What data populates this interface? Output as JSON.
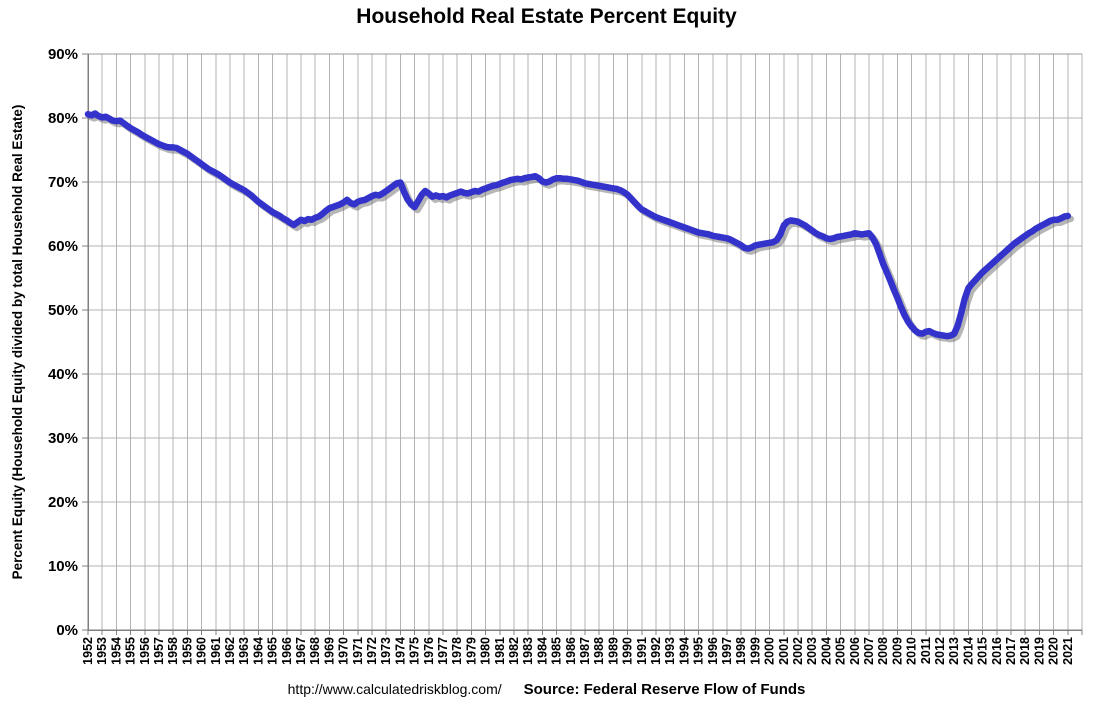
{
  "page": {
    "background": "#ffffff"
  },
  "footer": {
    "url": "http://www.calculatedriskblog.com/",
    "source": "Source: Federal Reserve Flow of Funds"
  },
  "chart_data": {
    "type": "line",
    "title": "Household Real Estate Percent Equity",
    "ylabel": "Percent Equity (Household Equity divided by total Household Real Estate)",
    "xlabel": "",
    "ylim": [
      0,
      90
    ],
    "y_tick_step": 10,
    "y_tick_labels": [
      "0%",
      "10%",
      "20%",
      "30%",
      "40%",
      "50%",
      "60%",
      "70%",
      "80%",
      "90%"
    ],
    "x_start": 1952,
    "x_end": 2021,
    "x_tick_labels": [
      "1952",
      "1953",
      "1954",
      "1955",
      "1956",
      "1957",
      "1958",
      "1959",
      "1960",
      "1961",
      "1962",
      "1963",
      "1964",
      "1965",
      "1966",
      "1967",
      "1968",
      "1969",
      "1970",
      "1971",
      "1972",
      "1973",
      "1974",
      "1975",
      "1976",
      "1977",
      "1978",
      "1979",
      "1980",
      "1981",
      "1982",
      "1983",
      "1984",
      "1985",
      "1986",
      "1987",
      "1988",
      "1989",
      "1990",
      "1991",
      "1992",
      "1993",
      "1994",
      "1995",
      "1996",
      "1997",
      "1998",
      "1999",
      "2000",
      "2001",
      "2002",
      "2003",
      "2004",
      "2005",
      "2006",
      "2007",
      "2008",
      "2009",
      "2010",
      "2011",
      "2012",
      "2013",
      "2014",
      "2015",
      "2016",
      "2017",
      "2018",
      "2019",
      "2020",
      "2021"
    ],
    "grid": true,
    "legend": "none",
    "colors": {
      "line": "#3333cc",
      "grid": "#b3b3b3",
      "axis": "#808080",
      "border": "#999999",
      "shadow": "rgba(110,110,110,0.5)"
    },
    "series": [
      {
        "name": "Household Real Estate Percent Equity",
        "color": "#3333cc",
        "frequency": "quarterly",
        "start_year": 1952,
        "step_years": 0.25,
        "values": [
          80.6,
          80.4,
          80.7,
          80.3,
          80.1,
          80.2,
          79.9,
          79.6,
          79.5,
          79.6,
          79.2,
          78.8,
          78.4,
          78.1,
          77.8,
          77.4,
          77.1,
          76.8,
          76.5,
          76.2,
          75.9,
          75.7,
          75.5,
          75.4,
          75.4,
          75.3,
          75.0,
          74.7,
          74.4,
          74.0,
          73.6,
          73.2,
          72.8,
          72.4,
          72.0,
          71.7,
          71.4,
          71.1,
          70.7,
          70.3,
          69.9,
          69.6,
          69.3,
          69.0,
          68.7,
          68.3,
          67.9,
          67.4,
          66.9,
          66.5,
          66.1,
          65.7,
          65.3,
          65.0,
          64.7,
          64.3,
          64.0,
          63.6,
          63.3,
          63.7,
          64.1,
          63.9,
          64.2,
          64.1,
          64.4,
          64.6,
          65.0,
          65.5,
          65.9,
          66.1,
          66.3,
          66.5,
          66.8,
          67.2,
          66.7,
          66.5,
          66.9,
          67.1,
          67.2,
          67.5,
          67.8,
          68.0,
          67.9,
          68.2,
          68.6,
          69.0,
          69.4,
          69.8,
          69.9,
          68.5,
          67.3,
          66.5,
          66.1,
          67.0,
          68.0,
          68.6,
          68.2,
          67.7,
          67.9,
          67.7,
          67.8,
          67.6,
          67.9,
          68.1,
          68.3,
          68.5,
          68.3,
          68.2,
          68.4,
          68.6,
          68.5,
          68.8,
          69.0,
          69.2,
          69.4,
          69.5,
          69.7,
          69.9,
          70.1,
          70.3,
          70.4,
          70.5,
          70.4,
          70.6,
          70.7,
          70.8,
          70.9,
          70.6,
          70.1,
          69.9,
          70.1,
          70.4,
          70.6,
          70.6,
          70.5,
          70.5,
          70.4,
          70.3,
          70.2,
          70.0,
          69.8,
          69.7,
          69.6,
          69.5,
          69.4,
          69.3,
          69.2,
          69.1,
          69.0,
          68.9,
          68.7,
          68.4,
          68.0,
          67.4,
          66.8,
          66.2,
          65.7,
          65.4,
          65.1,
          64.8,
          64.5,
          64.3,
          64.1,
          63.9,
          63.7,
          63.5,
          63.3,
          63.1,
          62.9,
          62.7,
          62.5,
          62.3,
          62.1,
          62.0,
          61.9,
          61.8,
          61.6,
          61.5,
          61.4,
          61.3,
          61.2,
          61.0,
          60.7,
          60.4,
          60.1,
          59.7,
          59.6,
          59.8,
          60.1,
          60.2,
          60.3,
          60.4,
          60.5,
          60.6,
          60.9,
          61.8,
          63.2,
          63.8,
          64.0,
          63.9,
          63.8,
          63.5,
          63.2,
          62.8,
          62.4,
          62.0,
          61.7,
          61.5,
          61.2,
          61.1,
          61.2,
          61.4,
          61.5,
          61.6,
          61.7,
          61.8,
          62.0,
          61.9,
          61.8,
          61.9,
          62.0,
          61.3,
          60.3,
          58.8,
          57.2,
          55.9,
          54.6,
          53.2,
          51.9,
          50.5,
          49.2,
          48.2,
          47.4,
          46.8,
          46.4,
          46.3,
          46.6,
          46.7,
          46.4,
          46.2,
          46.1,
          46.0,
          45.9,
          46.0,
          46.3,
          47.6,
          49.6,
          51.8,
          53.4,
          54.1,
          54.7,
          55.3,
          55.9,
          56.4,
          56.9,
          57.4,
          57.9,
          58.4,
          58.9,
          59.4,
          59.9,
          60.4,
          60.8,
          61.2,
          61.6,
          62.0,
          62.3,
          62.7,
          63.0,
          63.3,
          63.6,
          63.9,
          64.1,
          64.1,
          64.3,
          64.6,
          64.7
        ]
      }
    ]
  }
}
